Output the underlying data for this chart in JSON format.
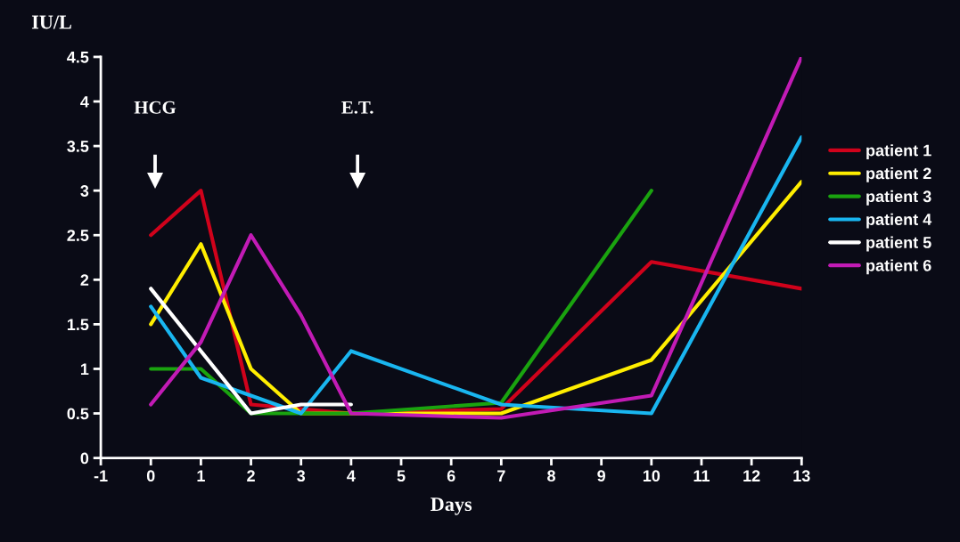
{
  "chart_data": {
    "type": "line",
    "xlabel": "Days",
    "ylabel": "IU/L",
    "xlim": [
      -1,
      13
    ],
    "xticks": [
      -1,
      0,
      1,
      2,
      3,
      4,
      5,
      6,
      7,
      8,
      9,
      10,
      11,
      12,
      13
    ],
    "ylim": [
      0,
      4.5
    ],
    "yticks": [
      0,
      0.5,
      1,
      1.5,
      2,
      2.5,
      3,
      3.5,
      4,
      4.5
    ],
    "grid": false,
    "legend": "right",
    "marker": "none",
    "line_style": "solid",
    "annotations": [
      "HCG",
      "E.T."
    ],
    "series": [
      {
        "name": "patient 1",
        "color": "#d0021b",
        "x": [
          0,
          1,
          2,
          4,
          7,
          10,
          13
        ],
        "values": [
          2.5,
          3.0,
          0.6,
          0.5,
          0.55,
          2.2,
          1.9
        ]
      },
      {
        "name": "patient 2",
        "color": "#ffee00",
        "x": [
          0,
          1,
          2,
          3,
          7,
          10,
          13
        ],
        "values": [
          1.5,
          2.4,
          1.0,
          0.5,
          0.5,
          1.1,
          3.1
        ]
      },
      {
        "name": "patient 3",
        "color": "#1aa30f",
        "x": [
          0,
          1,
          2,
          4,
          7,
          10
        ],
        "values": [
          1.0,
          1.0,
          0.5,
          0.5,
          0.62,
          3.0
        ]
      },
      {
        "name": "patient 4",
        "color": "#19b6f0",
        "x": [
          0,
          1,
          2,
          3,
          4,
          7,
          10,
          13
        ],
        "values": [
          1.7,
          0.9,
          0.7,
          0.5,
          1.2,
          0.6,
          0.5,
          3.6
        ]
      },
      {
        "name": "patient 5",
        "color": "#ffffff",
        "x": [
          0,
          1,
          2,
          3,
          4
        ],
        "values": [
          1.9,
          1.2,
          0.5,
          0.6,
          0.6
        ]
      },
      {
        "name": "patient 6",
        "color": "#c21bb5",
        "x": [
          0,
          1,
          2,
          3,
          4,
          7,
          10,
          13
        ],
        "values": [
          0.6,
          1.3,
          2.5,
          1.6,
          0.5,
          0.45,
          0.7,
          4.5
        ]
      }
    ]
  }
}
